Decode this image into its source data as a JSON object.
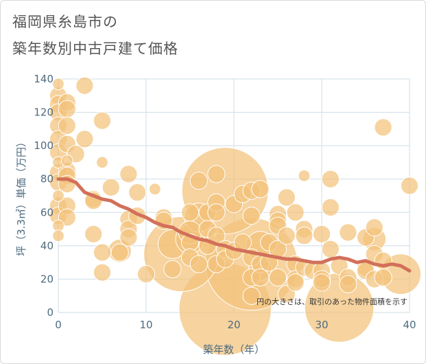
{
  "title_line1": "福岡県糸島市の",
  "title_line2": "築年数別中古戸建て価格",
  "colors": {
    "bubble": "#f2c27a",
    "line": "#d2705a",
    "grid": "#cfdde6",
    "axis_text": "#4d6b80"
  },
  "chart_data": {
    "type": "scatter",
    "xlabel": "築年数（年）",
    "ylabel": "坪（3.3㎡）単価（万円）",
    "xlim": [
      0,
      40
    ],
    "ylim": [
      0,
      140
    ],
    "xticks": [
      0,
      10,
      20,
      30,
      40
    ],
    "yticks": [
      0,
      20,
      40,
      60,
      80,
      100,
      120,
      140
    ],
    "note": "円の大きさは、取引のあった物件面積を示す",
    "trend_line": {
      "name": "average",
      "x": [
        0,
        1,
        2,
        3,
        4,
        5,
        6,
        7,
        8,
        9,
        10,
        11,
        12,
        13,
        14,
        15,
        16,
        17,
        18,
        19,
        20,
        21,
        22,
        23,
        24,
        25,
        26,
        27,
        28,
        29,
        30,
        31,
        32,
        33,
        34,
        35,
        36,
        37,
        38,
        39,
        40
      ],
      "y": [
        80,
        80,
        78,
        72,
        70,
        68,
        67,
        64,
        62,
        59,
        57,
        54,
        52,
        51,
        48,
        46,
        44,
        43,
        41,
        40,
        38,
        37,
        36,
        35,
        34,
        33,
        32,
        32,
        31,
        30,
        30,
        32,
        33,
        32,
        30,
        31,
        29,
        28,
        29,
        28,
        25
      ]
    },
    "points": [
      {
        "x": 0,
        "y": 137,
        "s": 2
      },
      {
        "x": 0,
        "y": 130,
        "s": 3
      },
      {
        "x": 0,
        "y": 125,
        "s": 3
      },
      {
        "x": 0,
        "y": 120,
        "s": 3
      },
      {
        "x": 0,
        "y": 112,
        "s": 3
      },
      {
        "x": 0,
        "y": 104,
        "s": 3
      },
      {
        "x": 0,
        "y": 96,
        "s": 3
      },
      {
        "x": 0,
        "y": 90,
        "s": 2
      },
      {
        "x": 0,
        "y": 84,
        "s": 3
      },
      {
        "x": 0,
        "y": 78,
        "s": 3
      },
      {
        "x": 0,
        "y": 70,
        "s": 2
      },
      {
        "x": 0,
        "y": 64,
        "s": 3
      },
      {
        "x": 0,
        "y": 58,
        "s": 3
      },
      {
        "x": 0,
        "y": 52,
        "s": 2
      },
      {
        "x": 0,
        "y": 46,
        "s": 2
      },
      {
        "x": 1,
        "y": 126,
        "s": 3
      },
      {
        "x": 1,
        "y": 122,
        "s": 3
      },
      {
        "x": 1,
        "y": 112,
        "s": 3
      },
      {
        "x": 1,
        "y": 101,
        "s": 3
      },
      {
        "x": 1,
        "y": 91,
        "s": 2
      },
      {
        "x": 1,
        "y": 85,
        "s": 3
      },
      {
        "x": 1,
        "y": 82,
        "s": 3
      },
      {
        "x": 1,
        "y": 77,
        "s": 3
      },
      {
        "x": 1,
        "y": 64,
        "s": 3
      },
      {
        "x": 1,
        "y": 57,
        "s": 3
      },
      {
        "x": 2,
        "y": 95,
        "s": 3
      },
      {
        "x": 3,
        "y": 136,
        "s": 3
      },
      {
        "x": 3,
        "y": 104,
        "s": 3
      },
      {
        "x": 4,
        "y": 68,
        "s": 3
      },
      {
        "x": 4,
        "y": 67,
        "s": 3
      },
      {
        "x": 4,
        "y": 47,
        "s": 3
      },
      {
        "x": 5,
        "y": 115,
        "s": 3
      },
      {
        "x": 5,
        "y": 90,
        "s": 2
      },
      {
        "x": 5,
        "y": 36,
        "s": 3
      },
      {
        "x": 5,
        "y": 24,
        "s": 3
      },
      {
        "x": 6,
        "y": 75,
        "s": 3
      },
      {
        "x": 7,
        "y": 37,
        "s": 4
      },
      {
        "x": 7,
        "y": 36,
        "s": 3
      },
      {
        "x": 8,
        "y": 83,
        "s": 3
      },
      {
        "x": 8,
        "y": 56,
        "s": 3
      },
      {
        "x": 8,
        "y": 50,
        "s": 3
      },
      {
        "x": 8,
        "y": 45,
        "s": 3
      },
      {
        "x": 9,
        "y": 72,
        "s": 3
      },
      {
        "x": 9,
        "y": 58,
        "s": 3
      },
      {
        "x": 10,
        "y": 23,
        "s": 3
      },
      {
        "x": 11,
        "y": 74,
        "s": 2
      },
      {
        "x": 12,
        "y": 57,
        "s": 3
      },
      {
        "x": 12,
        "y": 55,
        "s": 3
      },
      {
        "x": 13,
        "y": 41,
        "s": 5
      },
      {
        "x": 13,
        "y": 26,
        "s": 3
      },
      {
        "x": 14,
        "y": 35,
        "s": 13
      },
      {
        "x": 15,
        "y": 60,
        "s": 3
      },
      {
        "x": 15,
        "y": 48,
        "s": 4
      },
      {
        "x": 15,
        "y": 44,
        "s": 5
      },
      {
        "x": 15,
        "y": 42,
        "s": 3
      },
      {
        "x": 15,
        "y": 33,
        "s": 3
      },
      {
        "x": 16,
        "y": 79,
        "s": 3
      },
      {
        "x": 16,
        "y": 57,
        "s": 5
      },
      {
        "x": 16,
        "y": 29,
        "s": 3
      },
      {
        "x": 17,
        "y": 60,
        "s": 3
      },
      {
        "x": 17,
        "y": 50,
        "s": 3
      },
      {
        "x": 17,
        "y": 40,
        "s": 3
      },
      {
        "x": 18,
        "y": 83,
        "s": 3
      },
      {
        "x": 18,
        "y": 66,
        "s": 3
      },
      {
        "x": 18,
        "y": 60,
        "s": 3
      },
      {
        "x": 18,
        "y": 46,
        "s": 3
      },
      {
        "x": 18,
        "y": 29,
        "s": 3
      },
      {
        "x": 19,
        "y": 73,
        "s": 15
      },
      {
        "x": 19,
        "y": 38,
        "s": 3
      },
      {
        "x": 19,
        "y": 32,
        "s": 3
      },
      {
        "x": 19,
        "y": 2,
        "s": 16
      },
      {
        "x": 20,
        "y": 65,
        "s": 3
      },
      {
        "x": 20,
        "y": 37,
        "s": 3
      },
      {
        "x": 21,
        "y": 71,
        "s": 3
      },
      {
        "x": 21,
        "y": 42,
        "s": 3
      },
      {
        "x": 22,
        "y": 73,
        "s": 3
      },
      {
        "x": 22,
        "y": 58,
        "s": 3
      },
      {
        "x": 22,
        "y": 33,
        "s": 3
      },
      {
        "x": 22,
        "y": 29,
        "s": 16
      },
      {
        "x": 22,
        "y": 21,
        "s": 3
      },
      {
        "x": 22,
        "y": 10,
        "s": 3
      },
      {
        "x": 23,
        "y": 74,
        "s": 3
      },
      {
        "x": 23,
        "y": 40,
        "s": 5
      },
      {
        "x": 23,
        "y": 29,
        "s": 3
      },
      {
        "x": 23,
        "y": 26,
        "s": 4
      },
      {
        "x": 23,
        "y": 21,
        "s": 3
      },
      {
        "x": 24,
        "y": 42,
        "s": 3
      },
      {
        "x": 24,
        "y": 30,
        "s": 3
      },
      {
        "x": 25,
        "y": 59,
        "s": 3
      },
      {
        "x": 25,
        "y": 55,
        "s": 3
      },
      {
        "x": 25,
        "y": 52,
        "s": 3
      },
      {
        "x": 25,
        "y": 38,
        "s": 3
      },
      {
        "x": 25,
        "y": 21,
        "s": 3
      },
      {
        "x": 26,
        "y": 69,
        "s": 3
      },
      {
        "x": 26,
        "y": 46,
        "s": 3
      },
      {
        "x": 26,
        "y": 11,
        "s": 3
      },
      {
        "x": 27,
        "y": 60,
        "s": 3
      },
      {
        "x": 27,
        "y": 29,
        "s": 3
      },
      {
        "x": 27,
        "y": 20,
        "s": 3
      },
      {
        "x": 27,
        "y": 18,
        "s": 3
      },
      {
        "x": 28,
        "y": 82,
        "s": 2
      },
      {
        "x": 28,
        "y": 50,
        "s": 3
      },
      {
        "x": 28,
        "y": 46,
        "s": 3
      },
      {
        "x": 28,
        "y": 27,
        "s": 3
      },
      {
        "x": 29,
        "y": 25,
        "s": 3
      },
      {
        "x": 30,
        "y": 47,
        "s": 3
      },
      {
        "x": 30,
        "y": 25,
        "s": 3
      },
      {
        "x": 30,
        "y": 20,
        "s": 3
      },
      {
        "x": 30,
        "y": 18,
        "s": 3
      },
      {
        "x": 31,
        "y": 80,
        "s": 3
      },
      {
        "x": 31,
        "y": 63,
        "s": 3
      },
      {
        "x": 31,
        "y": 38,
        "s": 3
      },
      {
        "x": 32,
        "y": 28,
        "s": 3
      },
      {
        "x": 32,
        "y": 3,
        "s": 12
      },
      {
        "x": 33,
        "y": 48,
        "s": 3
      },
      {
        "x": 33,
        "y": 21,
        "s": 3
      },
      {
        "x": 33,
        "y": 17,
        "s": 3
      },
      {
        "x": 35,
        "y": 45,
        "s": 3
      },
      {
        "x": 35,
        "y": 27,
        "s": 3
      },
      {
        "x": 35,
        "y": 25,
        "s": 3
      },
      {
        "x": 36,
        "y": 51,
        "s": 3
      },
      {
        "x": 36,
        "y": 44,
        "s": 4
      },
      {
        "x": 36,
        "y": 35,
        "s": 3
      },
      {
        "x": 36,
        "y": 20,
        "s": 3
      },
      {
        "x": 37,
        "y": 111,
        "s": 3
      },
      {
        "x": 37,
        "y": 31,
        "s": 3
      },
      {
        "x": 37,
        "y": 21,
        "s": 3
      },
      {
        "x": 39,
        "y": 23,
        "s": 7
      },
      {
        "x": 40,
        "y": 76,
        "s": 3
      }
    ]
  }
}
